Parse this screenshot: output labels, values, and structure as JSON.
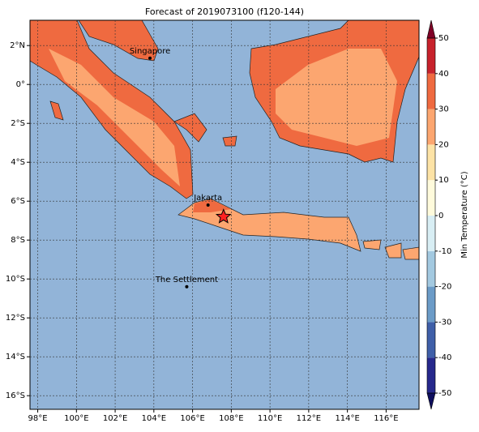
{
  "chart_data": {
    "type": "map",
    "title": "Forecast of 2019073100 (f120-144)",
    "xlim": [
      97.6,
      117.7
    ],
    "ylim": [
      -16.7,
      3.3
    ],
    "xticks": [
      {
        "value": 98,
        "label": "98°E"
      },
      {
        "value": 100,
        "label": "100°E"
      },
      {
        "value": 102,
        "label": "102°E"
      },
      {
        "value": 104,
        "label": "104°E"
      },
      {
        "value": 106,
        "label": "106°E"
      },
      {
        "value": 108,
        "label": "108°E"
      },
      {
        "value": 110,
        "label": "110°E"
      },
      {
        "value": 112,
        "label": "112°E"
      },
      {
        "value": 114,
        "label": "114°E"
      },
      {
        "value": 116,
        "label": "116°E"
      }
    ],
    "yticks": [
      {
        "value": 2,
        "label": "2°N"
      },
      {
        "value": 0,
        "label": "0°"
      },
      {
        "value": -2,
        "label": "2°S"
      },
      {
        "value": -4,
        "label": "4°S"
      },
      {
        "value": -6,
        "label": "6°S"
      },
      {
        "value": -8,
        "label": "8°S"
      },
      {
        "value": -10,
        "label": "10°S"
      },
      {
        "value": -12,
        "label": "12°S"
      },
      {
        "value": -14,
        "label": "14°S"
      },
      {
        "value": -16,
        "label": "16°S"
      }
    ],
    "grid": true,
    "cities": [
      {
        "name": "Singapore",
        "lon": 103.8,
        "lat": 1.35
      },
      {
        "name": "Jakarta",
        "lon": 106.8,
        "lat": -6.2
      },
      {
        "name": "The Settlement",
        "lon": 105.7,
        "lat": -10.4
      }
    ],
    "marker": {
      "lon": 107.6,
      "lat": -6.8,
      "color": "#ff2020"
    },
    "colorbar": {
      "label": "Min Temperature (°C)",
      "ticks": [
        -50,
        -40,
        -30,
        -20,
        -10,
        0,
        10,
        20,
        30,
        40,
        50
      ],
      "colors": [
        "#26288c",
        "#3f5fa8",
        "#6b9bc7",
        "#a3c9e0",
        "#d8eef4",
        "#fffbdc",
        "#fde3a6",
        "#fca670",
        "#ef6a40",
        "#c7222c"
      ],
      "under_color": "#0e0e5e",
      "over_color": "#7f0026"
    }
  }
}
